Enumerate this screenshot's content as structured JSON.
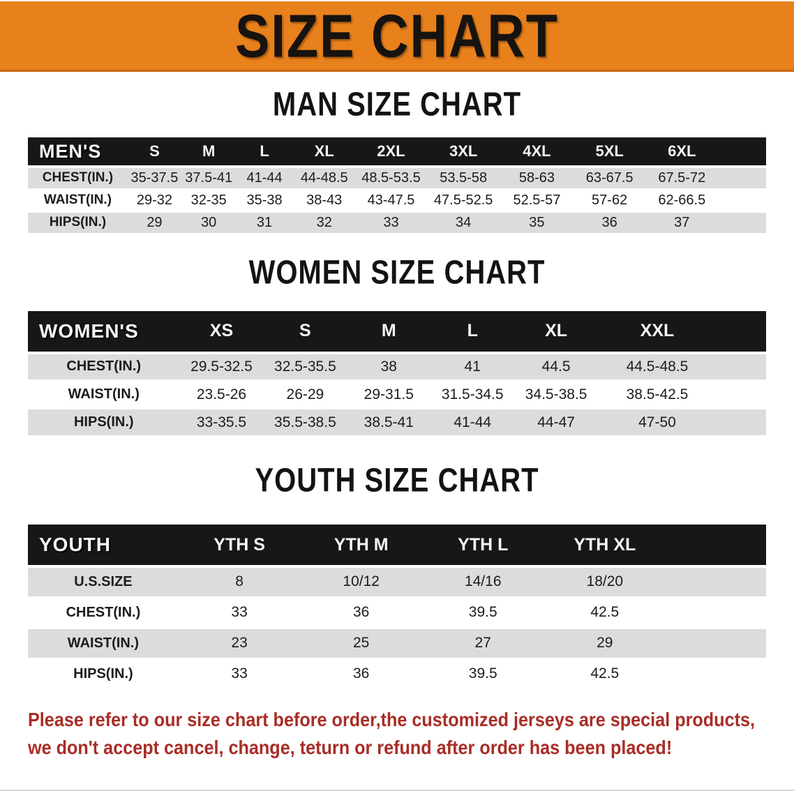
{
  "banner": {
    "title": "SIZE CHART",
    "bg_color": "#E8801C",
    "text_color": "#161310"
  },
  "colors": {
    "header_row_bg": "#171717",
    "header_row_text": "#F5F5F5",
    "shaded_row_bg": "#DCDCDC",
    "disclaimer_text": "#A92D27"
  },
  "sections": [
    {
      "title": "MAN SIZE CHART",
      "table": {
        "header_label": "MEN'S",
        "columns": [
          "S",
          "M",
          "L",
          "XL",
          "2XL",
          "3XL",
          "4XL",
          "5XL",
          "6XL"
        ],
        "rows": [
          {
            "label": "CHEST(IN.)",
            "values": [
              "35-37.5",
              "37.5-41",
              "41-44",
              "44-48.5",
              "48.5-53.5",
              "53.5-58",
              "58-63",
              "63-67.5",
              "67.5-72"
            ]
          },
          {
            "label": "WAIST(IN.)",
            "values": [
              "29-32",
              "32-35",
              "35-38",
              "38-43",
              "43-47.5",
              "47.5-52.5",
              "52.5-57",
              "57-62",
              "62-66.5"
            ]
          },
          {
            "label": "HIPS(IN.)",
            "values": [
              "29",
              "30",
              "31",
              "32",
              "33",
              "34",
              "35",
              "36",
              "37"
            ]
          }
        ]
      }
    },
    {
      "title": "WOMEN SIZE CHART",
      "table": {
        "header_label": "WOMEN'S",
        "columns": [
          "XS",
          "S",
          "M",
          "L",
          "XL",
          "XXL"
        ],
        "rows": [
          {
            "label": "CHEST(IN.)",
            "values": [
              "29.5-32.5",
              "32.5-35.5",
              "38",
              "41",
              "44.5",
              "44.5-48.5"
            ]
          },
          {
            "label": "WAIST(IN.)",
            "values": [
              "23.5-26",
              "26-29",
              "29-31.5",
              "31.5-34.5",
              "34.5-38.5",
              "38.5-42.5"
            ]
          },
          {
            "label": "HIPS(IN.)",
            "values": [
              "33-35.5",
              "35.5-38.5",
              "38.5-41",
              "41-44",
              "44-47",
              "47-50"
            ]
          }
        ]
      }
    },
    {
      "title": "YOUTH SIZE CHART",
      "table": {
        "header_label": "YOUTH",
        "columns": [
          "YTH S",
          "YTH M",
          "YTH L",
          "YTH XL"
        ],
        "rows": [
          {
            "label": "U.S.SIZE",
            "values": [
              "8",
              "10/12",
              "14/16",
              "18/20"
            ]
          },
          {
            "label": "CHEST(IN.)",
            "values": [
              "33",
              "36",
              "39.5",
              "42.5"
            ]
          },
          {
            "label": "WAIST(IN.)",
            "values": [
              "23",
              "25",
              "27",
              "29"
            ]
          },
          {
            "label": "HIPS(IN.)",
            "values": [
              "33",
              "36",
              "39.5",
              "42.5"
            ]
          }
        ]
      }
    }
  ],
  "disclaimer": {
    "line1": "Please refer to our size chart before order,the customized jerseys are special products,",
    "line2": "we don't accept cancel, change, teturn or refund after order has been placed!"
  }
}
